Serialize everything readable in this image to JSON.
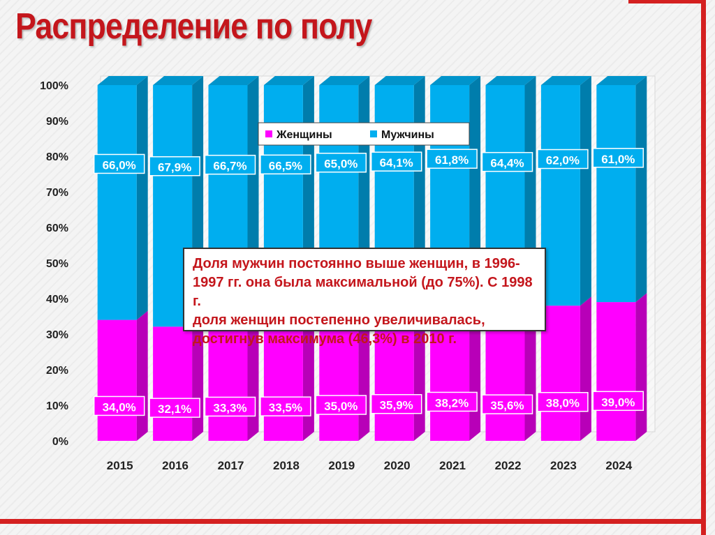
{
  "page": {
    "title": "Распределение по полу"
  },
  "colors": {
    "women": "#ff00ff",
    "men": "#00aeef",
    "accent": "#c4161c"
  },
  "chart_data": {
    "type": "bar",
    "stacked": true,
    "percent": true,
    "style": "3d",
    "categories": [
      "2015",
      "2016",
      "2017",
      "2018",
      "2019",
      "2020",
      "2021",
      "2022",
      "2023",
      "2024"
    ],
    "series": [
      {
        "name": "Женщины",
        "values": [
          34.0,
          32.1,
          33.3,
          33.5,
          35.0,
          35.9,
          38.2,
          35.6,
          38.0,
          39.0
        ],
        "labels": [
          "34,0%",
          "32,1%",
          "33,3%",
          "33,5%",
          "35,0%",
          "35,9%",
          "38,2%",
          "35,6%",
          "38,0%",
          "39,0%"
        ]
      },
      {
        "name": "Мужчины",
        "values": [
          66.0,
          67.9,
          66.7,
          66.5,
          65.0,
          64.1,
          61.8,
          64.4,
          62.0,
          61.0
        ],
        "labels": [
          "66,0%",
          "67,9%",
          "66,7%",
          "66,5%",
          "65,0%",
          "64,1%",
          "61,8%",
          "64,4%",
          "62,0%",
          "61,0%"
        ]
      }
    ],
    "yticks": [
      "0%",
      "10%",
      "20%",
      "30%",
      "40%",
      "50%",
      "60%",
      "70%",
      "80%",
      "90%",
      "100%"
    ],
    "ylim": [
      0,
      100
    ],
    "legend": "top-center",
    "grid": false
  },
  "note": {
    "lines": [
      "Доля мужчин постоянно выше женщин, в 1996-",
      "1997 гг. она была максимальной (до 75%). С 1998 г.",
      "доля женщин постепенно увеличивалась,",
      "достигнув максимума (46,3%) в 2010 г."
    ]
  }
}
